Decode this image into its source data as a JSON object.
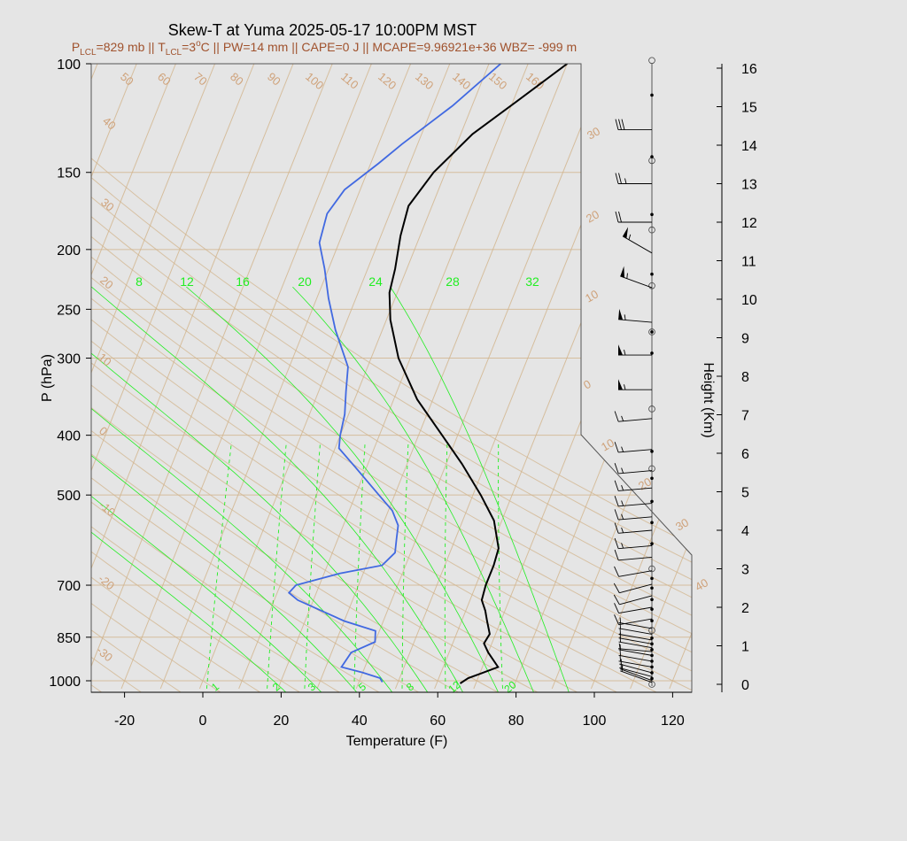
{
  "title": "Skew-T at Yuma 2025-05-17 10:00PM MST",
  "subtitle": {
    "p_lcl_prefix": "P",
    "p_lcl_sub": "LCL",
    "p_lcl_value": "=829 mb || ",
    "t_lcl_prefix": "T",
    "t_lcl_sub": "LCL",
    "t_lcl_value": "=3",
    "t_lcl_sup": "o",
    "rest": "C || PW=14 mm || CAPE=0 J || MCAPE=9.96921e+36 WBZ= -999 m"
  },
  "colors": {
    "background": "#e5e5e5",
    "isotherm": "#d2b48c",
    "mixing_ratio": "#22ee22",
    "temperature": "#000000",
    "dewpoint": "#4169e1",
    "subtitle": "#a0522d"
  },
  "chart_data": {
    "type": "line",
    "title": "Skew-T at Yuma 2025-05-17 10:00PM MST",
    "xlabel": "Temperature (F)",
    "ylabel": "P (hPa)",
    "y2label": "Height (Km)",
    "y_scale": "log",
    "xlim": [
      -28,
      125
    ],
    "ylim": [
      1030,
      100
    ],
    "x_ticks": [
      -20,
      0,
      20,
      40,
      60,
      80,
      100,
      120
    ],
    "p_ticks": [
      100,
      150,
      200,
      250,
      300,
      400,
      500,
      700,
      850,
      1000
    ],
    "height_ticks": [
      0,
      1,
      2,
      3,
      4,
      5,
      6,
      7,
      8,
      9,
      10,
      11,
      12,
      13,
      14,
      15,
      16
    ],
    "isotherm_labels": [
      50,
      60,
      70,
      80,
      90,
      100,
      110,
      120,
      130,
      140,
      150,
      160,
      40,
      30,
      20,
      10,
      0,
      -10,
      -20,
      -30
    ],
    "isotherm_right_labels": [
      30,
      20,
      10,
      0,
      10,
      20,
      30,
      40
    ],
    "mixing_ratio_top_labels": [
      8,
      12,
      16,
      20,
      24,
      28,
      32
    ],
    "mixing_ratio_bottom_labels": [
      1,
      2,
      3,
      5,
      8,
      12,
      20
    ],
    "series": [
      {
        "name": "temperature",
        "points": [
          [
            66,
            1010
          ],
          [
            67.5,
            990
          ],
          [
            70,
            975
          ],
          [
            74,
            950
          ],
          [
            70,
            900
          ],
          [
            68,
            870
          ],
          [
            68.5,
            840
          ],
          [
            66.5,
            800
          ],
          [
            65,
            770
          ],
          [
            63,
            740
          ],
          [
            62.5,
            700
          ],
          [
            62.5,
            650
          ],
          [
            62,
            610
          ],
          [
            58,
            550
          ],
          [
            52,
            500
          ],
          [
            44,
            445
          ],
          [
            36,
            400
          ],
          [
            26,
            350
          ],
          [
            17,
            300
          ],
          [
            11,
            260
          ],
          [
            8,
            235
          ],
          [
            7,
            215
          ],
          [
            5,
            190
          ],
          [
            4,
            170
          ],
          [
            7,
            150
          ],
          [
            13,
            130
          ],
          [
            21,
            115
          ],
          [
            30,
            100
          ]
        ]
      },
      {
        "name": "dewpoint",
        "points": [
          [
            46,
            1005
          ],
          [
            45,
            990
          ],
          [
            40,
            970
          ],
          [
            34,
            950
          ],
          [
            35,
            900
          ],
          [
            40,
            865
          ],
          [
            39,
            830
          ],
          [
            30,
            800
          ],
          [
            16,
            740
          ],
          [
            13,
            720
          ],
          [
            14,
            700
          ],
          [
            24,
            670
          ],
          [
            34,
            650
          ],
          [
            36,
            620
          ],
          [
            35,
            590
          ],
          [
            34,
            560
          ],
          [
            31,
            530
          ],
          [
            26,
            500
          ],
          [
            17,
            450
          ],
          [
            11,
            420
          ],
          [
            10,
            400
          ],
          [
            9,
            370
          ],
          [
            7,
            340
          ],
          [
            5,
            310
          ],
          [
            -2,
            270
          ],
          [
            -7,
            240
          ],
          [
            -11,
            215
          ],
          [
            -15,
            195
          ],
          [
            -16,
            175
          ],
          [
            -14,
            160
          ],
          [
            -8,
            145
          ],
          [
            -4,
            135
          ],
          [
            5,
            117
          ],
          [
            13,
            100
          ]
        ]
      }
    ],
    "wind_barbs": [
      {
        "km": 0.05,
        "dir": 290,
        "kt": 5
      },
      {
        "km": 0.1,
        "dir": 290,
        "kt": 5
      },
      {
        "km": 0.2,
        "dir": 285,
        "kt": 5
      },
      {
        "km": 0.3,
        "dir": 285,
        "kt": 5
      },
      {
        "km": 0.45,
        "dir": 280,
        "kt": 5
      },
      {
        "km": 0.6,
        "dir": 280,
        "kt": 5
      },
      {
        "km": 0.75,
        "dir": 280,
        "kt": 5
      },
      {
        "km": 0.85,
        "dir": 275,
        "kt": 5
      },
      {
        "km": 0.95,
        "dir": 280,
        "kt": 5
      },
      {
        "km": 1.05,
        "dir": 280,
        "kt": 5
      },
      {
        "km": 1.15,
        "dir": 280,
        "kt": 5
      },
      {
        "km": 1.3,
        "dir": 280,
        "kt": 5
      },
      {
        "km": 1.45,
        "dir": 280,
        "kt": 5
      },
      {
        "km": 1.7,
        "dir": 260,
        "kt": 10
      },
      {
        "km": 2.0,
        "dir": 260,
        "kt": 10
      },
      {
        "km": 2.3,
        "dir": 255,
        "kt": 10
      },
      {
        "km": 2.6,
        "dir": 255,
        "kt": 10
      },
      {
        "km": 2.95,
        "dir": 260,
        "kt": 10
      },
      {
        "km": 3.3,
        "dir": 265,
        "kt": 10
      },
      {
        "km": 3.6,
        "dir": 265,
        "kt": 15
      },
      {
        "km": 4.0,
        "dir": 265,
        "kt": 15
      },
      {
        "km": 4.35,
        "dir": 265,
        "kt": 15
      },
      {
        "km": 4.7,
        "dir": 265,
        "kt": 15
      },
      {
        "km": 5.1,
        "dir": 265,
        "kt": 15
      },
      {
        "km": 5.55,
        "dir": 265,
        "kt": 15
      },
      {
        "km": 6.1,
        "dir": 265,
        "kt": 15
      },
      {
        "km": 6.9,
        "dir": 265,
        "kt": 15
      },
      {
        "km": 7.65,
        "dir": 270,
        "kt": 55
      },
      {
        "km": 8.55,
        "dir": 270,
        "kt": 55
      },
      {
        "km": 9.4,
        "dir": 275,
        "kt": 55
      },
      {
        "km": 10.3,
        "dir": 290,
        "kt": 55
      },
      {
        "km": 11.2,
        "dir": 300,
        "kt": 55
      },
      {
        "km": 12.0,
        "dir": 270,
        "kt": 20
      },
      {
        "km": 13.0,
        "dir": 270,
        "kt": 25
      },
      {
        "km": 14.4,
        "dir": 270,
        "kt": 30
      }
    ],
    "height_markers": [
      {
        "km": 0.0,
        "kind": "open"
      },
      {
        "km": 0.15,
        "kind": "dot"
      },
      {
        "km": 0.3,
        "kind": "dot"
      },
      {
        "km": 0.45,
        "kind": "dot"
      },
      {
        "km": 0.6,
        "kind": "dot"
      },
      {
        "km": 0.75,
        "kind": "dot"
      },
      {
        "km": 0.9,
        "kind": "dot"
      },
      {
        "km": 1.05,
        "kind": "dot"
      },
      {
        "km": 1.2,
        "kind": "dot"
      },
      {
        "km": 1.4,
        "kind": "open"
      },
      {
        "km": 1.65,
        "kind": "dot"
      },
      {
        "km": 1.95,
        "kind": "dot"
      },
      {
        "km": 2.2,
        "kind": "dot"
      },
      {
        "km": 2.5,
        "kind": "dot"
      },
      {
        "km": 2.75,
        "kind": "dot"
      },
      {
        "km": 3.0,
        "kind": "open"
      },
      {
        "km": 3.65,
        "kind": "dot"
      },
      {
        "km": 4.2,
        "kind": "dot"
      },
      {
        "km": 4.75,
        "kind": "dot"
      },
      {
        "km": 5.35,
        "kind": "dot"
      },
      {
        "km": 5.6,
        "kind": "open"
      },
      {
        "km": 6.05,
        "kind": "dot"
      },
      {
        "km": 7.15,
        "kind": "open"
      },
      {
        "km": 8.6,
        "kind": "dot"
      },
      {
        "km": 9.15,
        "kind": "open-dot"
      },
      {
        "km": 10.35,
        "kind": "open"
      },
      {
        "km": 10.65,
        "kind": "dot"
      },
      {
        "km": 11.8,
        "kind": "open"
      },
      {
        "km": 12.2,
        "kind": "dot"
      },
      {
        "km": 13.6,
        "kind": "open"
      },
      {
        "km": 13.7,
        "kind": "dot"
      },
      {
        "km": 15.3,
        "kind": "dot"
      },
      {
        "km": 16.2,
        "kind": "open"
      }
    ]
  }
}
